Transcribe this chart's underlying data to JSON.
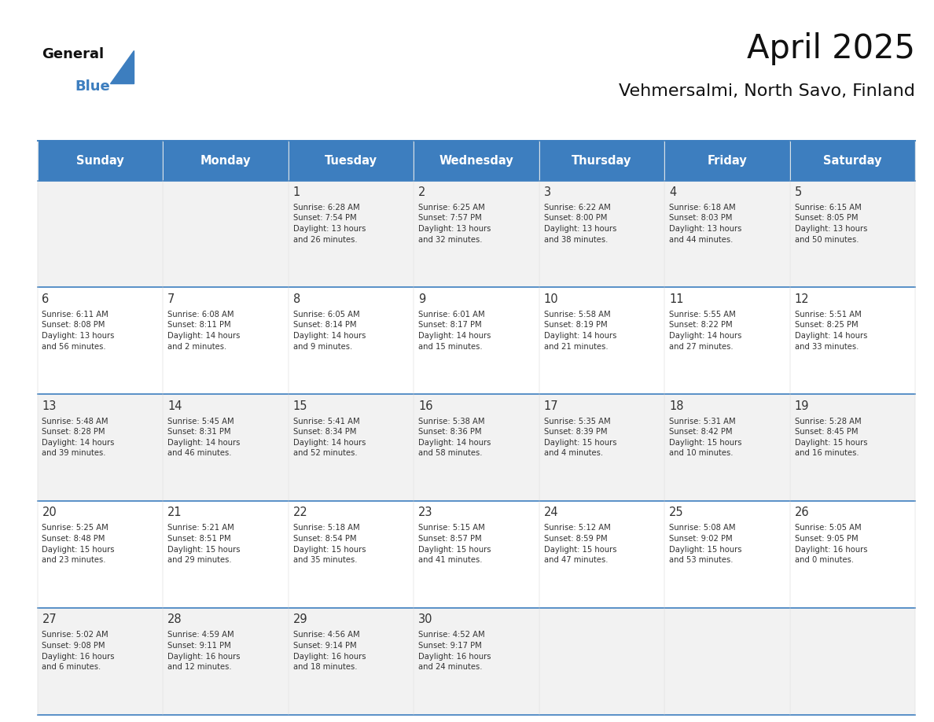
{
  "title": "April 2025",
  "subtitle": "Vehmersalmi, North Savo, Finland",
  "days_of_week": [
    "Sunday",
    "Monday",
    "Tuesday",
    "Wednesday",
    "Thursday",
    "Friday",
    "Saturday"
  ],
  "header_bg_color": "#3d7ebf",
  "header_text_color": "#ffffff",
  "row_bg_colors": [
    "#f2f2f2",
    "#ffffff"
  ],
  "border_color": "#3d7ebf",
  "cell_text_color": "#333333",
  "day_num_color": "#333333",
  "weeks": [
    [
      {
        "day": null,
        "info": null
      },
      {
        "day": null,
        "info": null
      },
      {
        "day": 1,
        "info": "Sunrise: 6:28 AM\nSunset: 7:54 PM\nDaylight: 13 hours\nand 26 minutes."
      },
      {
        "day": 2,
        "info": "Sunrise: 6:25 AM\nSunset: 7:57 PM\nDaylight: 13 hours\nand 32 minutes."
      },
      {
        "day": 3,
        "info": "Sunrise: 6:22 AM\nSunset: 8:00 PM\nDaylight: 13 hours\nand 38 minutes."
      },
      {
        "day": 4,
        "info": "Sunrise: 6:18 AM\nSunset: 8:03 PM\nDaylight: 13 hours\nand 44 minutes."
      },
      {
        "day": 5,
        "info": "Sunrise: 6:15 AM\nSunset: 8:05 PM\nDaylight: 13 hours\nand 50 minutes."
      }
    ],
    [
      {
        "day": 6,
        "info": "Sunrise: 6:11 AM\nSunset: 8:08 PM\nDaylight: 13 hours\nand 56 minutes."
      },
      {
        "day": 7,
        "info": "Sunrise: 6:08 AM\nSunset: 8:11 PM\nDaylight: 14 hours\nand 2 minutes."
      },
      {
        "day": 8,
        "info": "Sunrise: 6:05 AM\nSunset: 8:14 PM\nDaylight: 14 hours\nand 9 minutes."
      },
      {
        "day": 9,
        "info": "Sunrise: 6:01 AM\nSunset: 8:17 PM\nDaylight: 14 hours\nand 15 minutes."
      },
      {
        "day": 10,
        "info": "Sunrise: 5:58 AM\nSunset: 8:19 PM\nDaylight: 14 hours\nand 21 minutes."
      },
      {
        "day": 11,
        "info": "Sunrise: 5:55 AM\nSunset: 8:22 PM\nDaylight: 14 hours\nand 27 minutes."
      },
      {
        "day": 12,
        "info": "Sunrise: 5:51 AM\nSunset: 8:25 PM\nDaylight: 14 hours\nand 33 minutes."
      }
    ],
    [
      {
        "day": 13,
        "info": "Sunrise: 5:48 AM\nSunset: 8:28 PM\nDaylight: 14 hours\nand 39 minutes."
      },
      {
        "day": 14,
        "info": "Sunrise: 5:45 AM\nSunset: 8:31 PM\nDaylight: 14 hours\nand 46 minutes."
      },
      {
        "day": 15,
        "info": "Sunrise: 5:41 AM\nSunset: 8:34 PM\nDaylight: 14 hours\nand 52 minutes."
      },
      {
        "day": 16,
        "info": "Sunrise: 5:38 AM\nSunset: 8:36 PM\nDaylight: 14 hours\nand 58 minutes."
      },
      {
        "day": 17,
        "info": "Sunrise: 5:35 AM\nSunset: 8:39 PM\nDaylight: 15 hours\nand 4 minutes."
      },
      {
        "day": 18,
        "info": "Sunrise: 5:31 AM\nSunset: 8:42 PM\nDaylight: 15 hours\nand 10 minutes."
      },
      {
        "day": 19,
        "info": "Sunrise: 5:28 AM\nSunset: 8:45 PM\nDaylight: 15 hours\nand 16 minutes."
      }
    ],
    [
      {
        "day": 20,
        "info": "Sunrise: 5:25 AM\nSunset: 8:48 PM\nDaylight: 15 hours\nand 23 minutes."
      },
      {
        "day": 21,
        "info": "Sunrise: 5:21 AM\nSunset: 8:51 PM\nDaylight: 15 hours\nand 29 minutes."
      },
      {
        "day": 22,
        "info": "Sunrise: 5:18 AM\nSunset: 8:54 PM\nDaylight: 15 hours\nand 35 minutes."
      },
      {
        "day": 23,
        "info": "Sunrise: 5:15 AM\nSunset: 8:57 PM\nDaylight: 15 hours\nand 41 minutes."
      },
      {
        "day": 24,
        "info": "Sunrise: 5:12 AM\nSunset: 8:59 PM\nDaylight: 15 hours\nand 47 minutes."
      },
      {
        "day": 25,
        "info": "Sunrise: 5:08 AM\nSunset: 9:02 PM\nDaylight: 15 hours\nand 53 minutes."
      },
      {
        "day": 26,
        "info": "Sunrise: 5:05 AM\nSunset: 9:05 PM\nDaylight: 16 hours\nand 0 minutes."
      }
    ],
    [
      {
        "day": 27,
        "info": "Sunrise: 5:02 AM\nSunset: 9:08 PM\nDaylight: 16 hours\nand 6 minutes."
      },
      {
        "day": 28,
        "info": "Sunrise: 4:59 AM\nSunset: 9:11 PM\nDaylight: 16 hours\nand 12 minutes."
      },
      {
        "day": 29,
        "info": "Sunrise: 4:56 AM\nSunset: 9:14 PM\nDaylight: 16 hours\nand 18 minutes."
      },
      {
        "day": 30,
        "info": "Sunrise: 4:52 AM\nSunset: 9:17 PM\nDaylight: 16 hours\nand 24 minutes."
      },
      {
        "day": null,
        "info": null
      },
      {
        "day": null,
        "info": null
      },
      {
        "day": null,
        "info": null
      }
    ]
  ],
  "logo_triangle_color": "#3d7ebf"
}
